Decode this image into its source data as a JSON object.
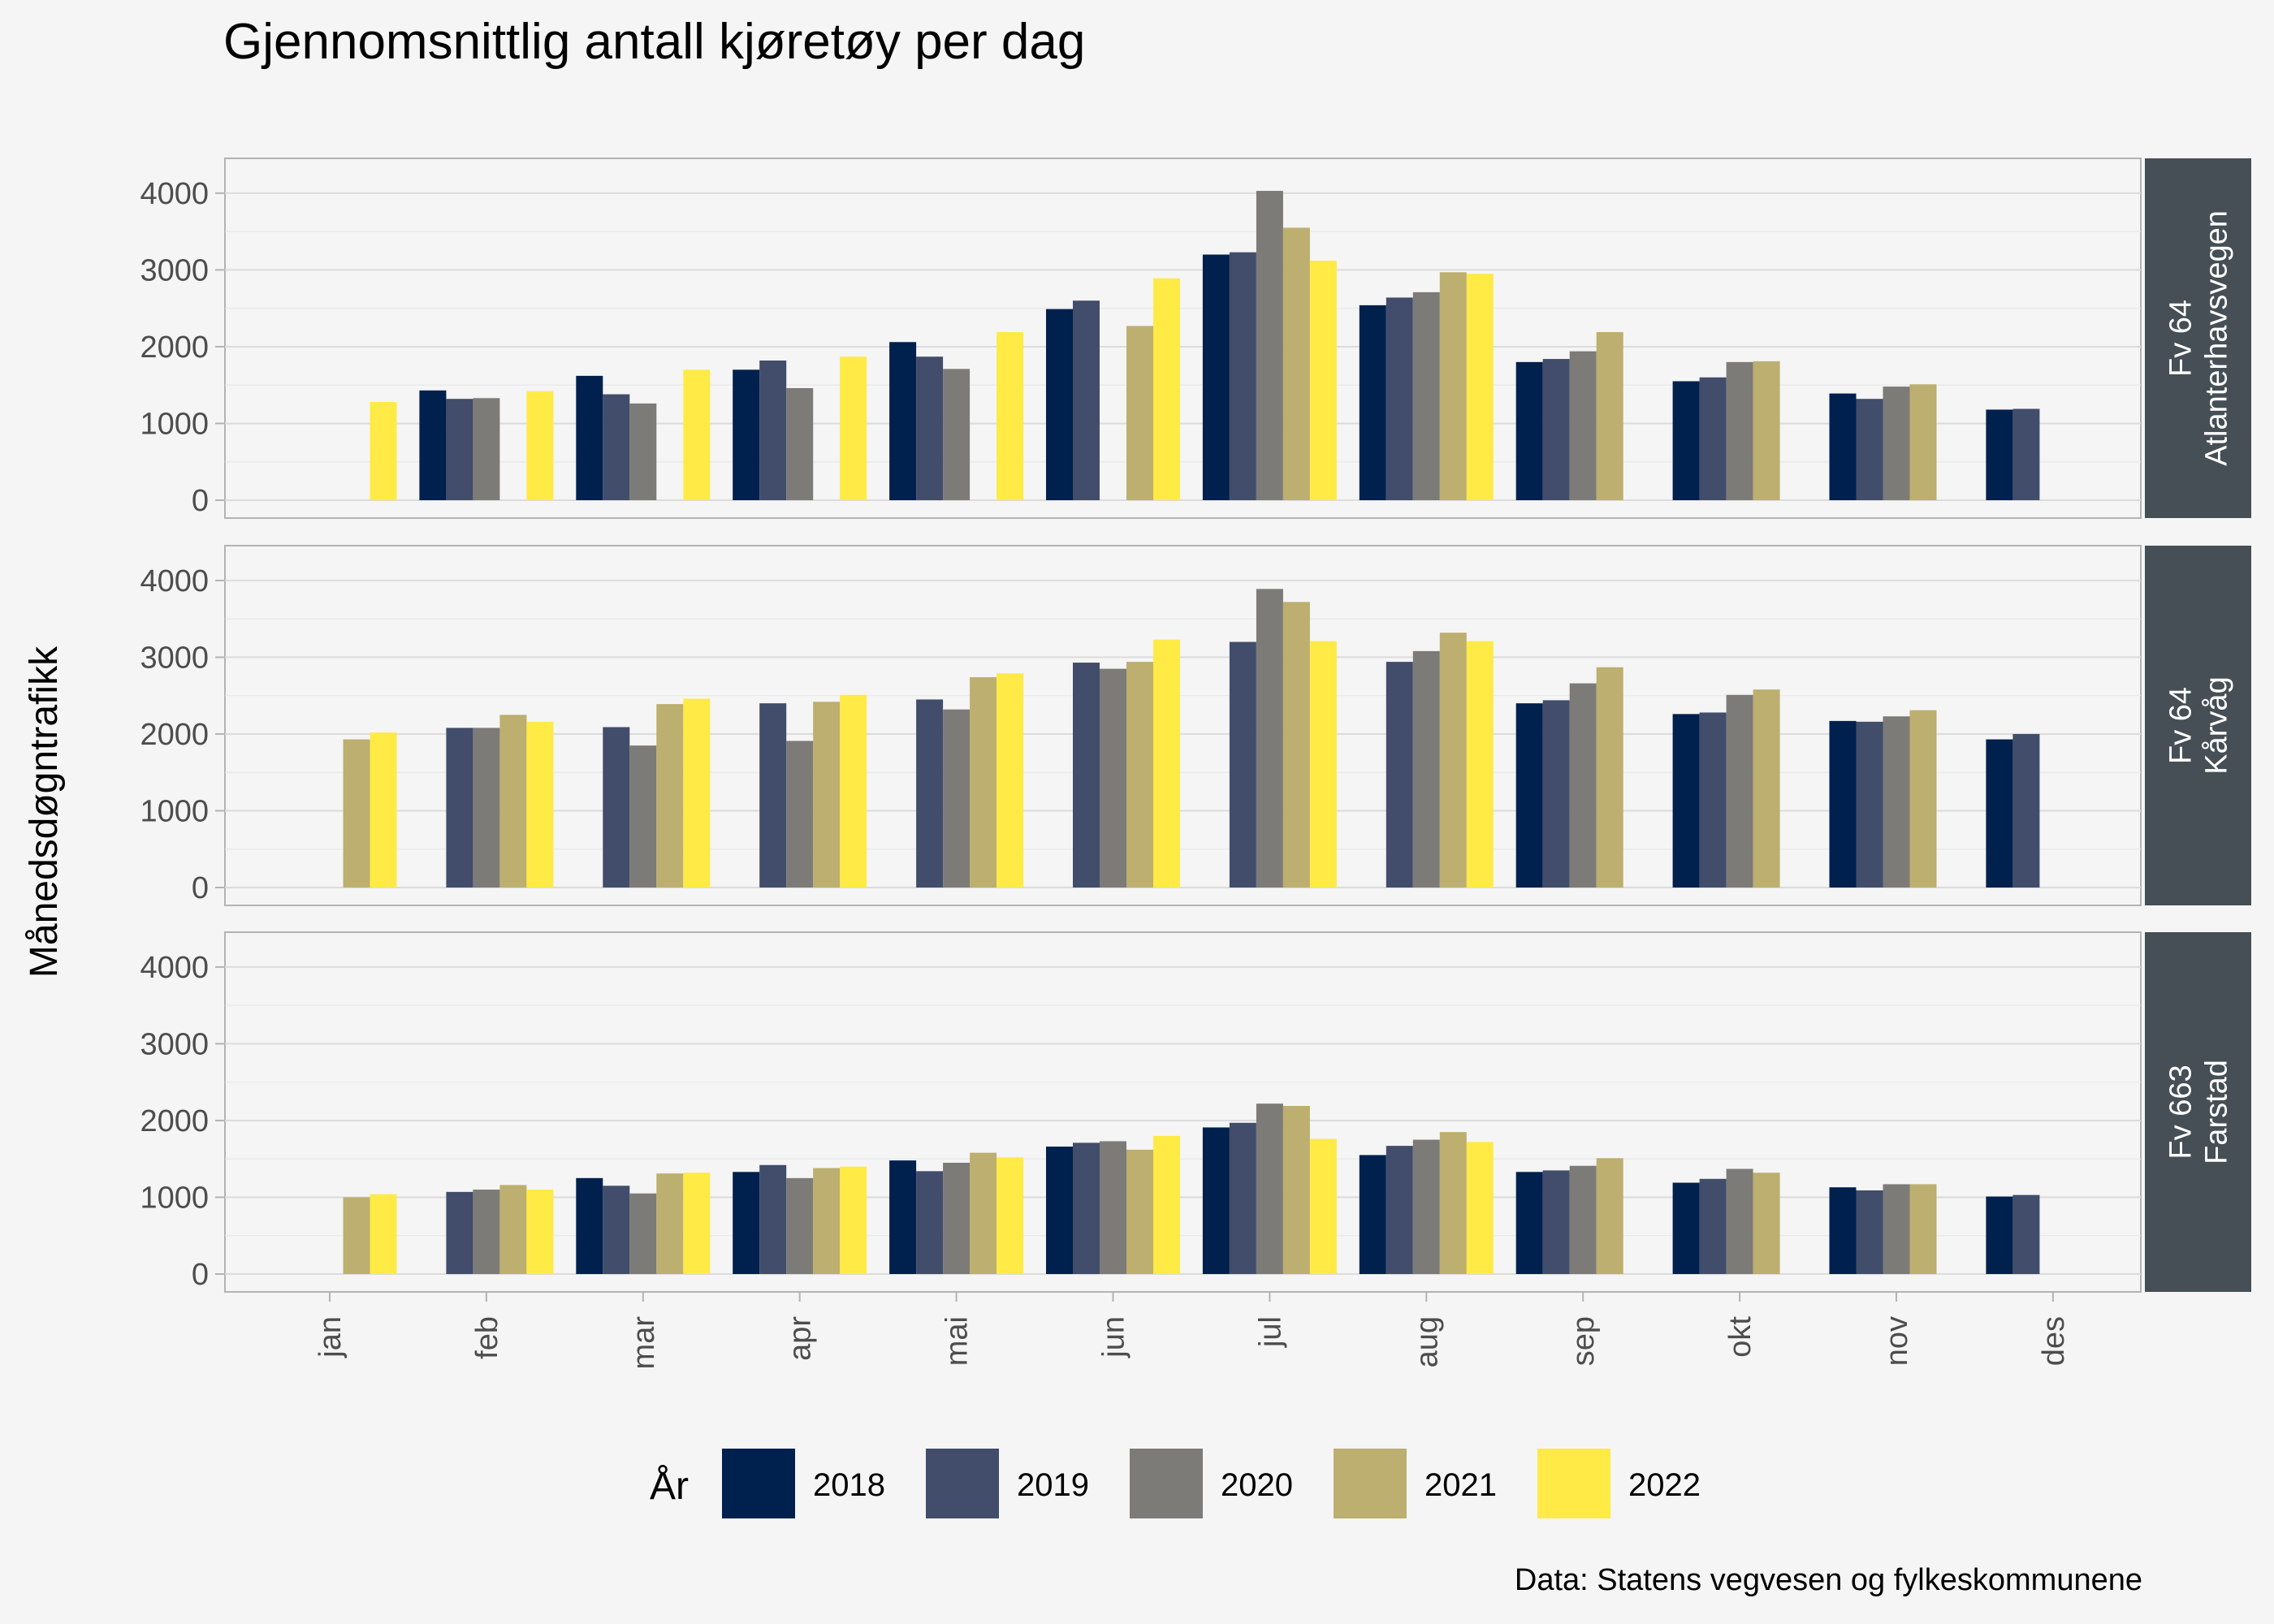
{
  "chart_data": {
    "type": "bar",
    "title": "Gjennomsnittlig antall kjøretøy per dag",
    "ylabel": "Månedsdøgntrafikk",
    "caption": "Data: Statens vegvesen og fylkeskommunene",
    "legend_title": "År",
    "legend_position": "bottom",
    "categories": [
      "jan",
      "feb",
      "mar",
      "apr",
      "mai",
      "jun",
      "jul",
      "aug",
      "sep",
      "okt",
      "nov",
      "des"
    ],
    "series_names": [
      "2018",
      "2019",
      "2020",
      "2021",
      "2022"
    ],
    "colors": [
      "#00204d",
      "#414d6b",
      "#7c7b78",
      "#bcaf6f",
      "#ffea46"
    ],
    "ylim": [
      0,
      4200
    ],
    "yticks": [
      0,
      1000,
      2000,
      3000,
      4000
    ],
    "grid": true,
    "panels": [
      {
        "name": "Fv 64\nAtlanterhavsvegen",
        "label_lines": [
          "Fv 64",
          "Atlanterhavsvegen"
        ],
        "values": {
          "2018": [
            null,
            1430,
            1620,
            1700,
            2060,
            2490,
            3200,
            2540,
            1800,
            1550,
            1390,
            1180
          ],
          "2019": [
            null,
            1320,
            1380,
            1820,
            1870,
            2600,
            3230,
            2640,
            1840,
            1600,
            1320,
            1190
          ],
          "2020": [
            null,
            1330,
            1260,
            1460,
            1710,
            null,
            4030,
            2710,
            1940,
            1800,
            1480,
            null
          ],
          "2021": [
            null,
            null,
            null,
            null,
            null,
            2270,
            3550,
            2970,
            2190,
            1810,
            1510,
            null
          ],
          "2022": [
            1280,
            1420,
            1700,
            1870,
            2190,
            2890,
            3120,
            2950,
            null,
            null,
            null,
            null
          ]
        }
      },
      {
        "name": "Fv 64\nKårvåg",
        "label_lines": [
          "Fv 64",
          "Kårvåg"
        ],
        "values": {
          "2018": [
            null,
            null,
            null,
            null,
            null,
            null,
            null,
            null,
            2400,
            2260,
            2170,
            1930
          ],
          "2019": [
            null,
            2080,
            2090,
            2400,
            2450,
            2930,
            3200,
            2940,
            2440,
            2280,
            2160,
            2000
          ],
          "2020": [
            null,
            2080,
            1850,
            1910,
            2320,
            2850,
            3890,
            3080,
            2660,
            2510,
            2230,
            null
          ],
          "2021": [
            1930,
            2250,
            2390,
            2420,
            2740,
            2940,
            3720,
            3320,
            2870,
            2580,
            2310,
            null
          ],
          "2022": [
            2020,
            2160,
            2460,
            2510,
            2790,
            3230,
            3210,
            3210,
            null,
            null,
            null,
            null
          ]
        }
      },
      {
        "name": "Fv 663\nFarstad",
        "label_lines": [
          "Fv 663",
          "Farstad"
        ],
        "values": {
          "2018": [
            null,
            null,
            1250,
            1330,
            1480,
            1660,
            1910,
            1550,
            1330,
            1190,
            1130,
            1010
          ],
          "2019": [
            null,
            1070,
            1150,
            1420,
            1340,
            1710,
            1970,
            1670,
            1350,
            1240,
            1090,
            1030
          ],
          "2020": [
            null,
            1100,
            1050,
            1250,
            1450,
            1730,
            2220,
            1750,
            1410,
            1370,
            1170,
            null
          ],
          "2021": [
            1000,
            1160,
            1310,
            1380,
            1580,
            1620,
            2190,
            1850,
            1510,
            1320,
            1170,
            null
          ],
          "2022": [
            1040,
            1100,
            1320,
            1400,
            1520,
            1800,
            1760,
            1720,
            null,
            null,
            null,
            null
          ]
        }
      }
    ]
  }
}
